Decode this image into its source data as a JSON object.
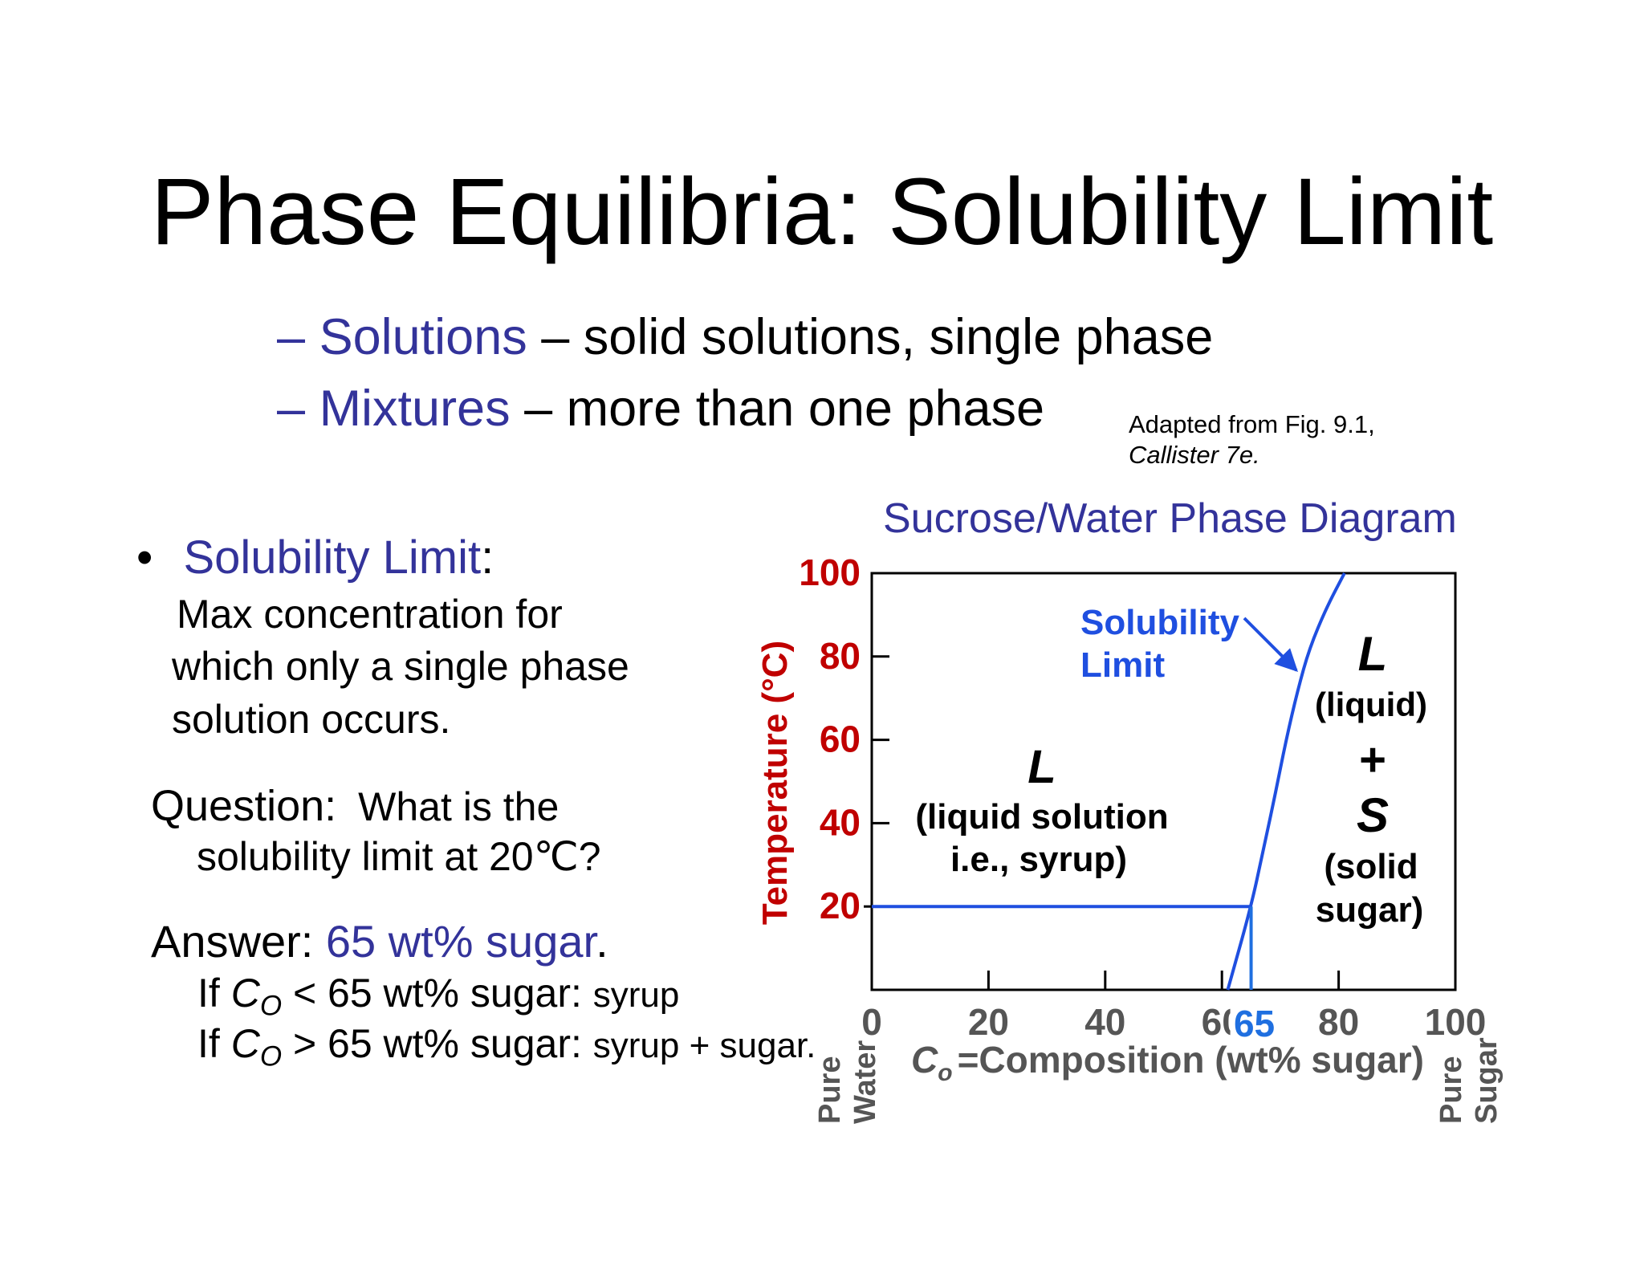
{
  "slide": {
    "title": "Phase Equilibria: Solubility Limit",
    "bullets": [
      {
        "dash": "–",
        "term": "Solutions",
        "rest": "– solid solutions, single phase"
      },
      {
        "dash": "–",
        "term": "Mixtures",
        "rest": "– more than one phase"
      }
    ],
    "credit": {
      "line1": "Adapted from Fig. 9.1,",
      "line2": "Callister 7e."
    },
    "definition": {
      "bullet": "•",
      "term": "Solubility Limit",
      "colon": ":",
      "lines": [
        "Max concentration for",
        "which only a single phase",
        "solution occurs."
      ]
    },
    "question": {
      "label": "Question:",
      "line1": "What is the",
      "line2": "solubility limit at 20℃?"
    },
    "answer": {
      "label": "Answer:",
      "value": "65 wt% sugar",
      "period": ".",
      "case1": {
        "prefix": "If",
        "var": "C",
        "sub": "O",
        "cond": "< 65 wt% sugar:",
        "result": "syrup"
      },
      "case2": {
        "prefix": "If",
        "var": "C",
        "sub": "O",
        "cond": "> 65 wt% sugar:",
        "result": "syrup + sugar."
      }
    }
  },
  "chart_data": {
    "type": "line",
    "title": "Sucrose/Water Phase Diagram",
    "xlabel": "=Composition (wt% sugar)",
    "xlabel_var": "C",
    "xlabel_sub": "o",
    "ylabel": "Temperature (°C)",
    "xlim": [
      0,
      100
    ],
    "ylim": [
      0,
      100
    ],
    "x_ticks": [
      0,
      20,
      40,
      60,
      80,
      100
    ],
    "y_ticks": [
      20,
      40,
      60,
      80,
      100
    ],
    "x_end_labels": {
      "left": [
        "Pure",
        "Water"
      ],
      "right": [
        "Pure",
        "Sugar"
      ]
    },
    "highlight": {
      "x": 65,
      "y": 20,
      "label": "65"
    },
    "series": [
      {
        "name": "Solubility Limit",
        "x": [
          61,
          65,
          67,
          69,
          71,
          73,
          75,
          78,
          81
        ],
        "y": [
          0,
          20,
          33,
          46,
          60,
          72,
          82,
          92,
          100
        ]
      }
    ],
    "annotations": {
      "solubility_label": [
        "Solubility",
        "Limit"
      ],
      "left_region": {
        "symbol": "L",
        "lines": [
          "(liquid solution",
          "i.e., syrup)"
        ]
      },
      "right_region": {
        "symbol1": "L",
        "line1": "(liquid)",
        "plus": "+",
        "symbol2": "S",
        "lines2": [
          "(solid",
          "sugar)"
        ]
      }
    },
    "colors": {
      "curve": "#1f4fe0",
      "y_axis": "#c00000",
      "highlight": "#1f6fe0",
      "x_axis_text": "#555555"
    }
  }
}
